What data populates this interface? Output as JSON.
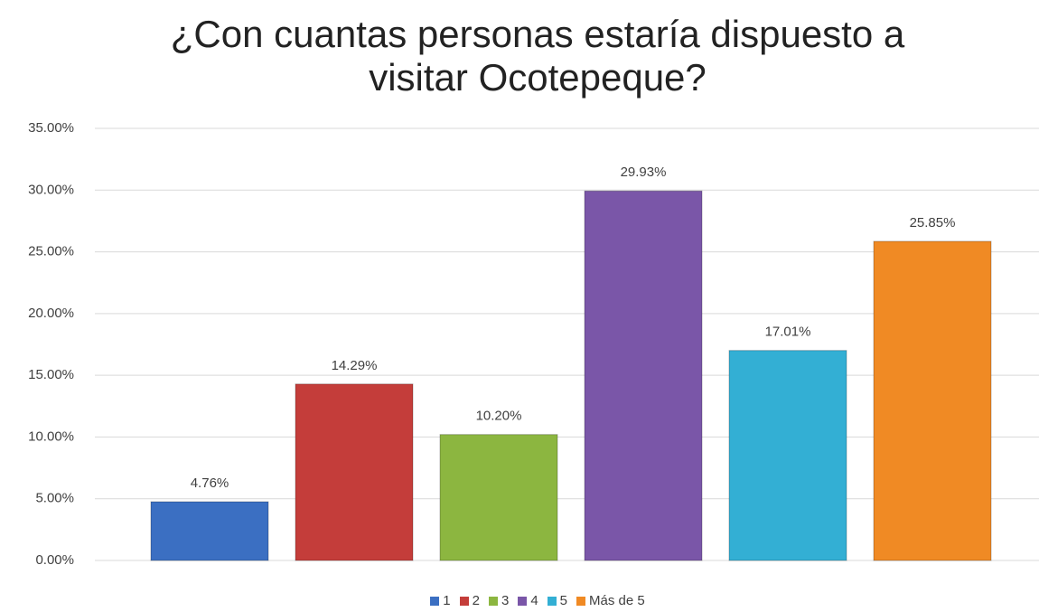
{
  "chart_data": {
    "type": "bar",
    "title": "¿Con cuantas personas estaría dispuesto a visitar Ocotepeque?",
    "categories": [
      null
    ],
    "series": [
      {
        "name": "1",
        "color": "#3b6fc2",
        "values": [
          4.76
        ],
        "value_labels": [
          "4.76%"
        ]
      },
      {
        "name": "2",
        "color": "#c43d3a",
        "values": [
          14.29
        ],
        "value_labels": [
          "14.29%"
        ]
      },
      {
        "name": "3",
        "color": "#8cb640",
        "values": [
          10.2
        ],
        "value_labels": [
          "10.20%"
        ]
      },
      {
        "name": "4",
        "color": "#7a56a8",
        "values": [
          29.93
        ],
        "value_labels": [
          "29.93%"
        ]
      },
      {
        "name": "5",
        "color": "#33afd4",
        "values": [
          17.01
        ],
        "value_labels": [
          "17.01%"
        ]
      },
      {
        "name": "Más de 5",
        "color": "#f08a24",
        "values": [
          25.85
        ],
        "value_labels": [
          "25.85%"
        ]
      }
    ],
    "ylim": [
      0,
      35
    ],
    "yticks": [
      {
        "value": 0,
        "label": "0.00%"
      },
      {
        "value": 5,
        "label": "5.00%"
      },
      {
        "value": 10,
        "label": "10.00%"
      },
      {
        "value": 15,
        "label": "15.00%"
      },
      {
        "value": 20,
        "label": "20.00%"
      },
      {
        "value": 25,
        "label": "25.00%"
      },
      {
        "value": 30,
        "label": "30.00%"
      },
      {
        "value": 35,
        "label": "35.00%"
      }
    ],
    "grid": true,
    "legend": "bottom"
  }
}
